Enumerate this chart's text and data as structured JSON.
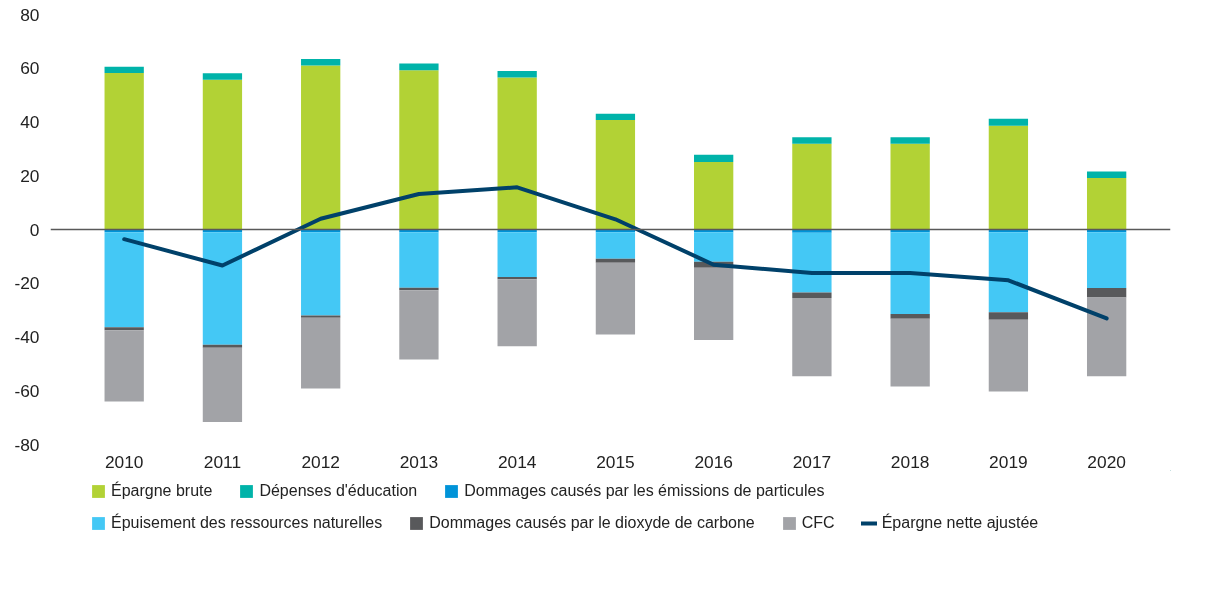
{
  "chart_data": {
    "type": "bar",
    "stacked": true,
    "categories": [
      "2010",
      "2011",
      "2012",
      "2013",
      "2014",
      "2015",
      "2016",
      "2017",
      "2018",
      "2019",
      "2020"
    ],
    "series": [
      {
        "name": "Épargne brute",
        "color": "#b2d235",
        "values": [
          58.2,
          55.7,
          61.0,
          59.3,
          56.6,
          40.7,
          25.1,
          31.9,
          31.9,
          38.6,
          19.2
        ]
      },
      {
        "name": "Dépenses d'éducation",
        "color": "#00b3a9",
        "values": [
          2.4,
          2.4,
          2.4,
          2.5,
          2.4,
          2.4,
          2.7,
          2.4,
          2.4,
          2.6,
          2.4
        ]
      },
      {
        "name": "Dommages causés par les émissions de particules",
        "color": "#0093d8",
        "values": [
          -1.0,
          -1.0,
          -1.0,
          -1.0,
          -1.0,
          -1.0,
          -1.0,
          -1.2,
          -1.0,
          -1.0,
          -1.0
        ]
      },
      {
        "name": "Épuisement des ressources naturelles",
        "color": "#44c8f5",
        "values": [
          -35.4,
          -41.9,
          -31.0,
          -20.7,
          -16.7,
          -9.9,
          -11.0,
          -22.2,
          -30.4,
          -29.8,
          -20.8
        ]
      },
      {
        "name": "Dommages causés par le dioxyde de carbone",
        "color": "#58595b",
        "values": [
          -1.1,
          -1.1,
          -0.8,
          -0.9,
          -0.8,
          -1.5,
          -2.2,
          -2.1,
          -1.8,
          -2.8,
          -3.5
        ]
      },
      {
        "name": "CFC",
        "color": "#a2a3a7",
        "values": [
          -26.5,
          -27.6,
          -26.4,
          -25.8,
          -24.9,
          -26.7,
          -26.9,
          -29.1,
          -25.2,
          -26.7,
          -29.3
        ]
      },
      {
        "name": "Épargne nette ajustée",
        "type": "line",
        "color": "#00416a",
        "values": [
          -3.6,
          -13.4,
          4.0,
          13.2,
          15.7,
          3.8,
          -13.1,
          -16.2,
          -16.2,
          -18.9,
          -33.1
        ]
      }
    ],
    "ylim": [
      -80,
      80
    ],
    "yticks": [
      -80,
      -60,
      -40,
      -20,
      0,
      20,
      40,
      60,
      80
    ],
    "ref_lines": [
      {
        "axis": "y",
        "value": 0,
        "color": "#595959"
      }
    ],
    "grid": false,
    "legend": "bottom",
    "line_style": "solid",
    "marker": "none"
  }
}
